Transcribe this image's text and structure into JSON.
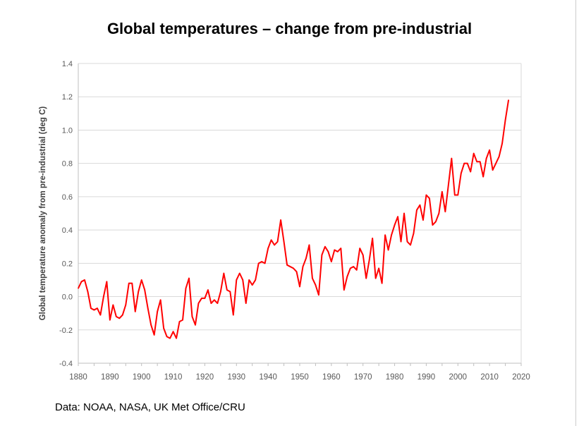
{
  "chart_data": {
    "type": "line",
    "title": "Global temperatures – change from pre-industrial",
    "xlabel": "",
    "ylabel": "Global temperature anomaly from pre-industrial (deg C)",
    "xlim": [
      1880,
      2020
    ],
    "ylim": [
      -0.4,
      1.4
    ],
    "xticks": [
      "1880",
      "1890",
      "1900",
      "1910",
      "1920",
      "1930",
      "1940",
      "1950",
      "1960",
      "1970",
      "1980",
      "1990",
      "2000",
      "2010",
      "2020"
    ],
    "yticks": [
      "-0.4",
      "-0.2",
      "0.0",
      "0.2",
      "0.4",
      "0.6",
      "0.8",
      "1.0",
      "1.2",
      "1.4"
    ],
    "grid": true,
    "line_color": "#ff0000",
    "x_start": 1880,
    "series": [
      {
        "values": [
          0.05,
          0.09,
          0.1,
          0.03,
          -0.07,
          -0.08,
          -0.07,
          -0.11,
          0.0,
          0.09,
          -0.14,
          -0.05,
          -0.12,
          -0.13,
          -0.11,
          -0.05,
          0.08,
          0.08,
          -0.09,
          0.03,
          0.1,
          0.04,
          -0.07,
          -0.17,
          -0.23,
          -0.09,
          -0.02,
          -0.19,
          -0.24,
          -0.25,
          -0.21,
          -0.25,
          -0.15,
          -0.14,
          0.05,
          0.11,
          -0.12,
          -0.17,
          -0.04,
          -0.01,
          -0.01,
          0.04,
          -0.04,
          -0.02,
          -0.04,
          0.03,
          0.14,
          0.04,
          0.03,
          -0.11,
          0.1,
          0.14,
          0.1,
          -0.04,
          0.1,
          0.07,
          0.1,
          0.2,
          0.21,
          0.2,
          0.29,
          0.34,
          0.31,
          0.33,
          0.46,
          0.33,
          0.19,
          0.18,
          0.17,
          0.15,
          0.06,
          0.18,
          0.23,
          0.31,
          0.11,
          0.07,
          0.01,
          0.25,
          0.3,
          0.27,
          0.21,
          0.28,
          0.27,
          0.29,
          0.04,
          0.12,
          0.17,
          0.18,
          0.16,
          0.29,
          0.25,
          0.11,
          0.22,
          0.35,
          0.11,
          0.17,
          0.08,
          0.37,
          0.28,
          0.37,
          0.43,
          0.48,
          0.33,
          0.5,
          0.33,
          0.31,
          0.38,
          0.52,
          0.55,
          0.46,
          0.61,
          0.59,
          0.43,
          0.45,
          0.5,
          0.63,
          0.51,
          0.67,
          0.83,
          0.61,
          0.61,
          0.74,
          0.8,
          0.8,
          0.75,
          0.86,
          0.81,
          0.81,
          0.72,
          0.83,
          0.88,
          0.76,
          0.8,
          0.84,
          0.92,
          1.06,
          1.18
        ]
      }
    ]
  },
  "source": "Data: NOAA, NASA, UK Met Office/CRU"
}
